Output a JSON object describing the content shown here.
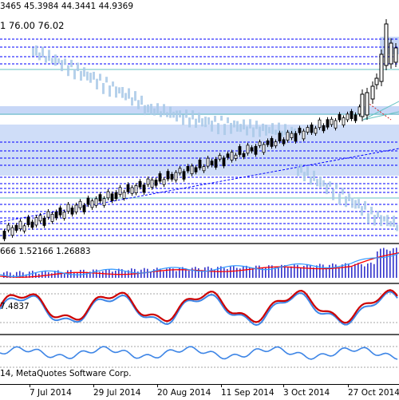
{
  "main_chart": {
    "ohlc_label": "3465 45.3984 44.3441 44.9369",
    "indicator_label": "1 76.00 76.02"
  },
  "macd_panel": {
    "label": "666 1.52166 1.26883"
  },
  "stoch_panel": {
    "label": "7.4837"
  },
  "rsi_panel": {
    "label": ""
  },
  "footer": {
    "copyright": "14, MetaQuotes Software Corp."
  },
  "time_axis": {
    "labels": [
      "7 Jul 2014",
      "29 Jul 2014",
      "20 Aug 2014",
      "11 Sep 2014",
      "3 Oct 2014",
      "27 Oct 2014"
    ]
  },
  "colors": {
    "band_blue": "#c7d7f7",
    "dotted_line": "#0000ff",
    "teal_line": "#66c2c2",
    "macd_signal": "#ff0000",
    "macd_line": "#3399ff",
    "stoch_main": "#cc0000",
    "stoch_signal": "#3d85e6",
    "rsi_line": "#3d85e6"
  }
}
